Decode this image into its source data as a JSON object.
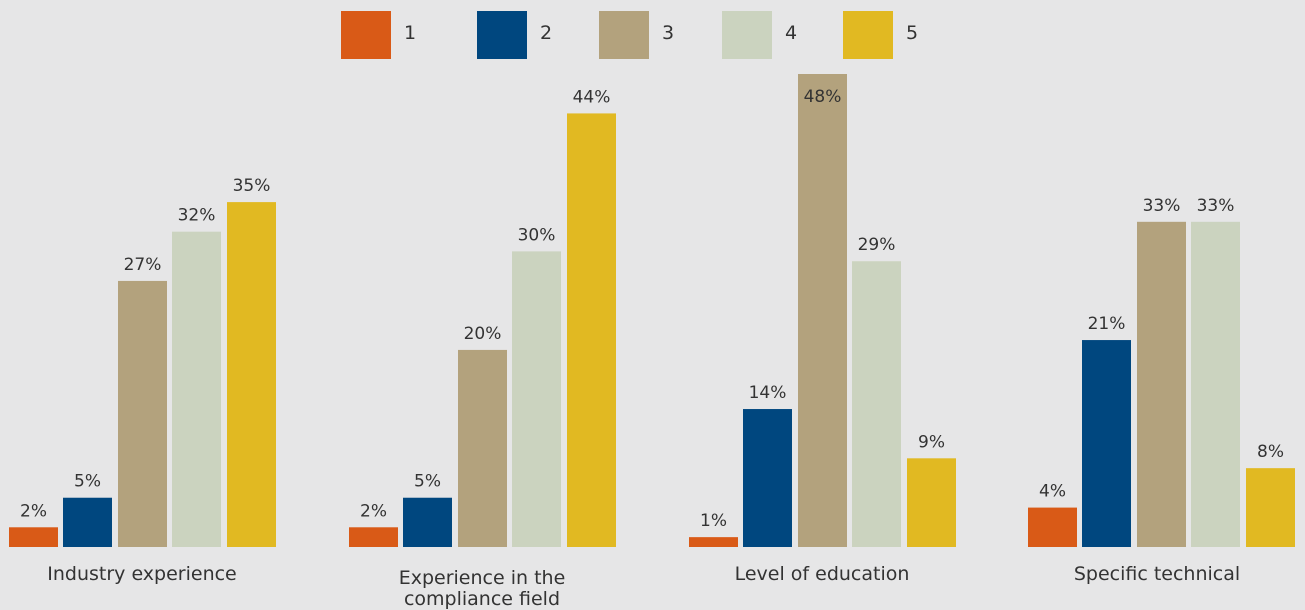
{
  "chart_data": {
    "type": "bar",
    "legend_position": "top-center",
    "grid": false,
    "ylim": [
      0,
      48
    ],
    "legend": [
      {
        "name": "1",
        "color": "#d95a17"
      },
      {
        "name": "2",
        "color": "#00477f"
      },
      {
        "name": "3",
        "color": "#b3a27d"
      },
      {
        "name": "4",
        "color": "#cbd3bf"
      },
      {
        "name": "5",
        "color": "#e1b922"
      }
    ],
    "categories": [
      {
        "label_lines": [
          "Industry experience"
        ],
        "values": [
          2,
          5,
          27,
          32,
          35
        ],
        "value_labels": [
          "2%",
          "5%",
          "27%",
          "32%",
          "35%"
        ]
      },
      {
        "label_lines": [
          "Experience in the",
          "compliance field"
        ],
        "values": [
          2,
          5,
          20,
          30,
          44
        ],
        "value_labels": [
          "2%",
          "5%",
          "20%",
          "30%",
          "44%"
        ]
      },
      {
        "label_lines": [
          "Level of education"
        ],
        "values": [
          1,
          14,
          48,
          29,
          9
        ],
        "value_labels": [
          "1%",
          "14%",
          "48%",
          "29%",
          "9%"
        ]
      },
      {
        "label_lines": [
          "Specific technical"
        ],
        "values": [
          4,
          21,
          33,
          33,
          8
        ],
        "value_labels": [
          "4%",
          "21%",
          "33%",
          "33%",
          "8%"
        ]
      }
    ]
  }
}
